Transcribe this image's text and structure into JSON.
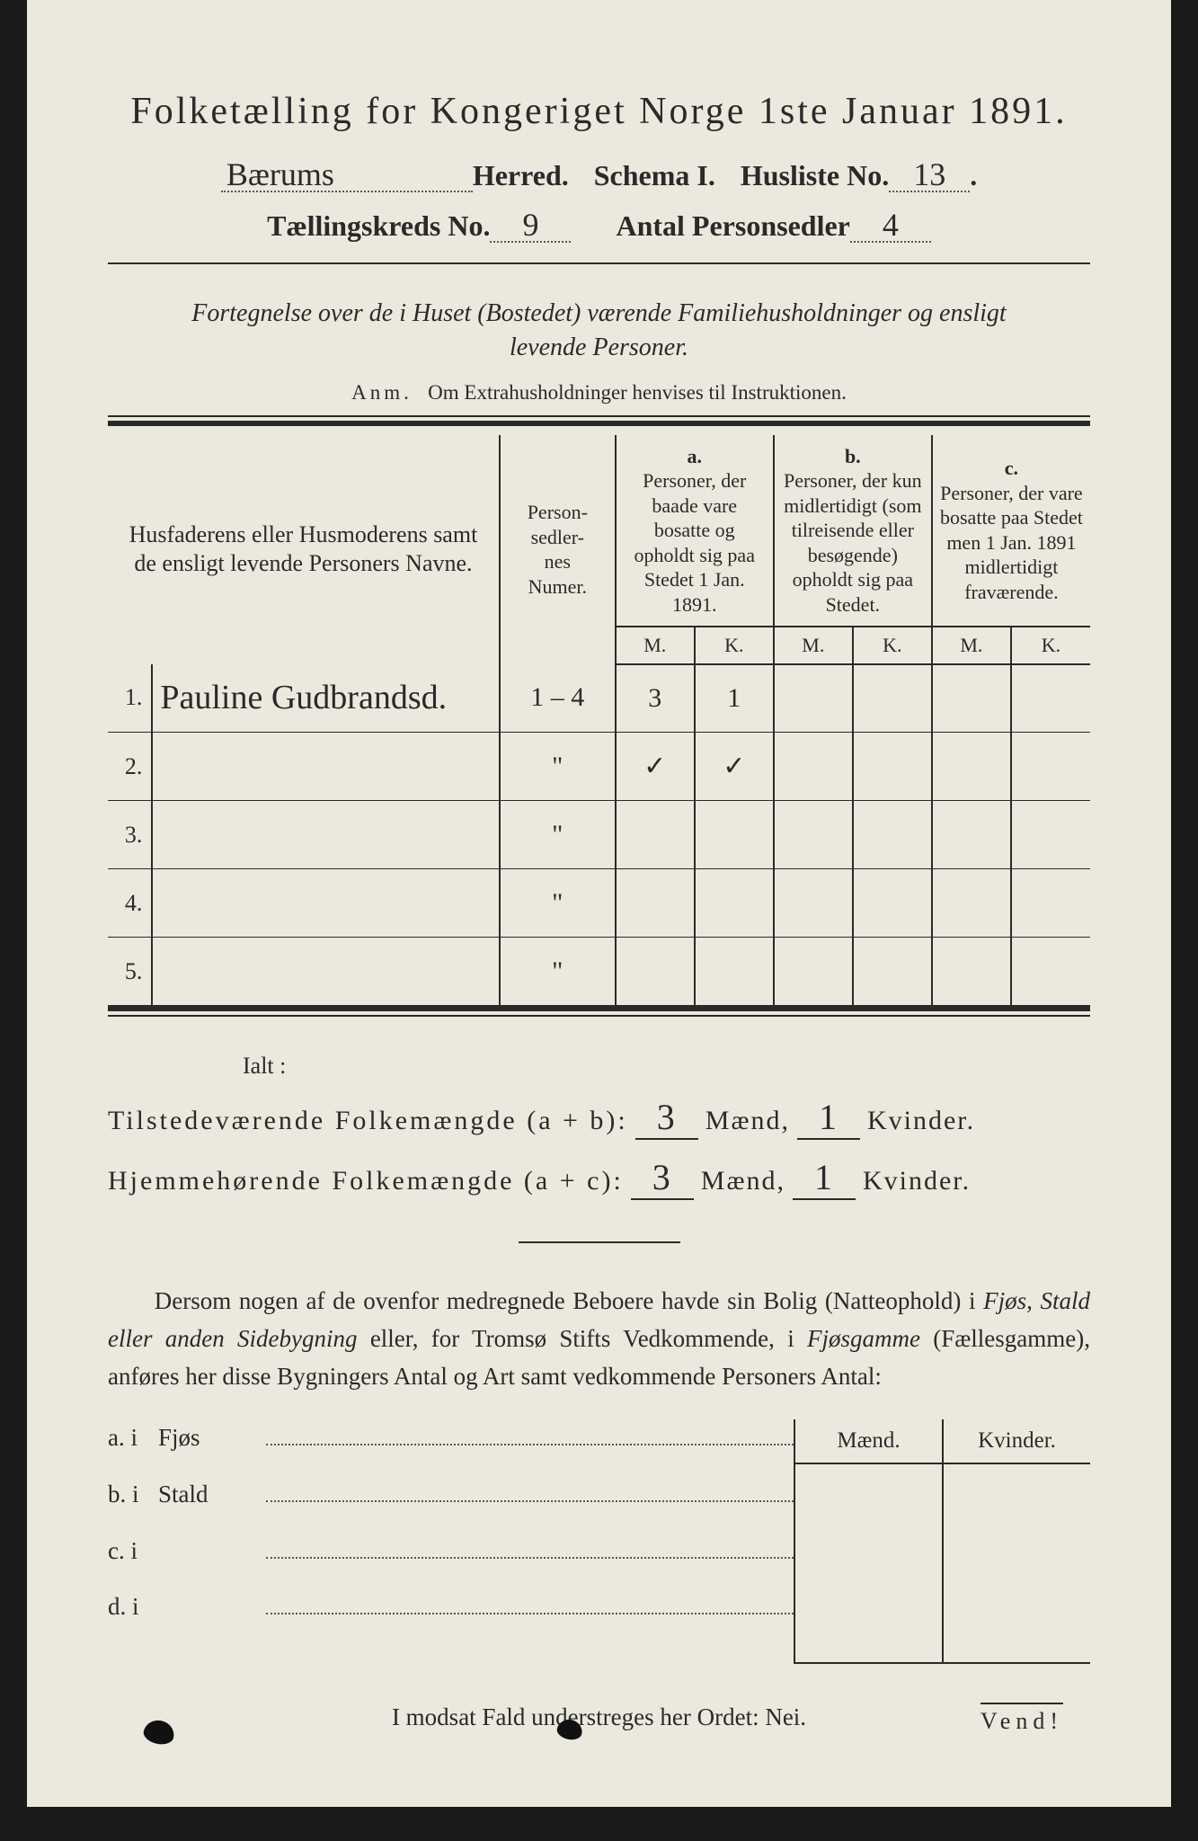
{
  "colors": {
    "paper": "#ebe9dd",
    "ink": "#2a2a2a",
    "background": "#1a1a1a",
    "dotted": "#555555"
  },
  "typography": {
    "title_fontsize_pt": 32,
    "header_fontsize_pt": 24,
    "body_fontsize_pt": 20,
    "table_fontsize_pt": 17,
    "script_family": "Brush Script MT"
  },
  "title": "Folketælling for Kongeriget Norge 1ste Januar 1891.",
  "line2": {
    "herred_value": "Bærums",
    "herred_label": " Herred.",
    "schema_label": "Schema I.",
    "husliste_label": "Husliste No.",
    "husliste_value": "13",
    "trailing_dot": "."
  },
  "line3": {
    "kreds_label": "Tællingskreds No.",
    "kreds_value": "9",
    "antal_label": "Antal Personsedler",
    "antal_value": "4"
  },
  "intro_line1": "Fortegnelse over de i Huset (Bostedet) værende Familiehusholdninger og ensligt",
  "intro_line2": "levende Personer.",
  "anm_prefix": "Anm.",
  "anm_text": "Om Extrahusholdninger henvises til Instruktionen.",
  "table": {
    "col_name_header": "Husfaderens eller Husmoderens samt de ensligt levende Personers Navne.",
    "col_numer_header": "Person-\nsedler-\nnes\nNumer.",
    "col_a_letter": "a.",
    "col_a_header": "Personer, der baade vare bosatte og opholdt sig paa Stedet 1 Jan. 1891.",
    "col_b_letter": "b.",
    "col_b_header": "Personer, der kun midlertidigt (som tilreisende eller besøgende) opholdt sig paa Stedet.",
    "col_c_letter": "c.",
    "col_c_header": "Personer, der vare bosatte paa Stedet men 1 Jan. 1891 midlertidigt fraværende.",
    "mk_m": "M.",
    "mk_k": "K.",
    "rows": [
      {
        "n": "1.",
        "name": "Pauline Gudbrandsd.",
        "numer": "1 – 4",
        "a_m": "3",
        "a_k": "1",
        "b_m": "",
        "b_k": "",
        "c_m": "",
        "c_k": ""
      },
      {
        "n": "2.",
        "name": "",
        "numer": "\"",
        "a_m": "✓",
        "a_k": "✓",
        "b_m": "",
        "b_k": "",
        "c_m": "",
        "c_k": ""
      },
      {
        "n": "3.",
        "name": "",
        "numer": "\"",
        "a_m": "",
        "a_k": "",
        "b_m": "",
        "b_k": "",
        "c_m": "",
        "c_k": ""
      },
      {
        "n": "4.",
        "name": "",
        "numer": "\"",
        "a_m": "",
        "a_k": "",
        "b_m": "",
        "b_k": "",
        "c_m": "",
        "c_k": ""
      },
      {
        "n": "5.",
        "name": "",
        "numer": "\"",
        "a_m": "",
        "a_k": "",
        "b_m": "",
        "b_k": "",
        "c_m": "",
        "c_k": ""
      }
    ]
  },
  "ialt_label": "Ialt :",
  "sum1": {
    "label": "Tilstedeværende Folkemængde (a + b):",
    "men": "3",
    "men_label": "Mænd,",
    "women": "1",
    "women_label": "Kvinder."
  },
  "sum2": {
    "label": "Hjemmehørende Folkemængde (a + c):",
    "men": "3",
    "men_label": "Mænd,",
    "women": "1",
    "women_label": "Kvinder."
  },
  "paragraph": "Dersom nogen af de ovenfor medregnede Beboere havde sin Bolig (Natteophold) i Fjøs, Stald eller anden Sidebygning eller, for Tromsø Stifts Vedkommende, i Fjøsgamme (Fællesgamme), anføres her disse Bygningers Antal og Art samt vedkommende Personers Antal:",
  "side_header_m": "Mænd.",
  "side_header_k": "Kvinder.",
  "side_rows": [
    {
      "key": "a.  i",
      "word": "Fjøs"
    },
    {
      "key": "b.  i",
      "word": "Stald"
    },
    {
      "key": "c.  i",
      "word": ""
    },
    {
      "key": "d.  i",
      "word": ""
    }
  ],
  "footer": "I modsat Fald understreges her Ordet: Nei.",
  "vend": "Vend!"
}
